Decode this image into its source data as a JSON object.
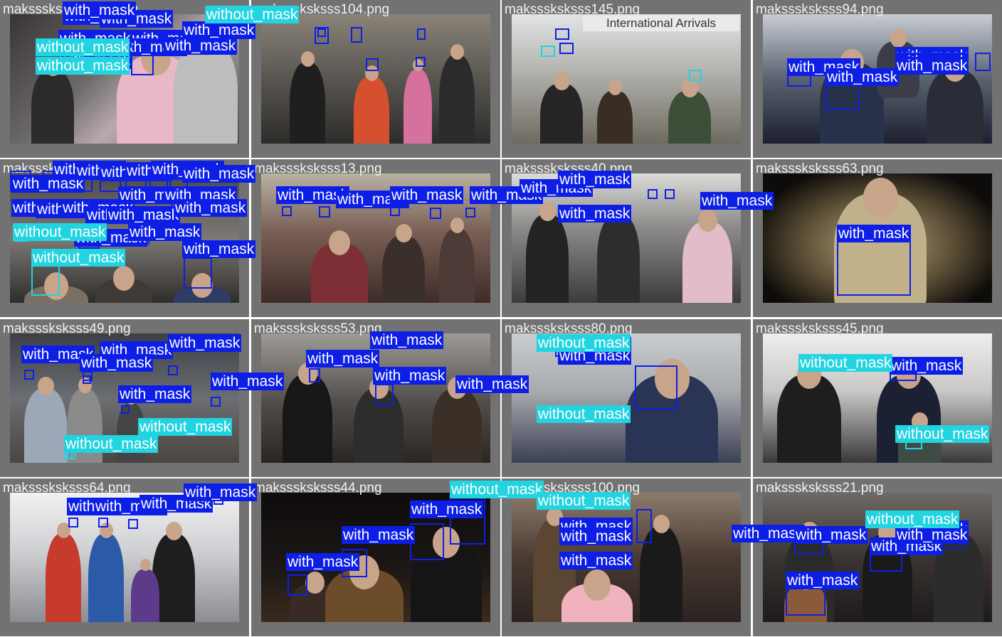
{
  "colors": {
    "with_mask": "#0d1fe6",
    "without_mask": "#22d3e0",
    "tile_bg": "#727272",
    "separator": "#ffffff",
    "filename_text": "#f2f2f2"
  },
  "class_labels": {
    "with_mask": "with_mask",
    "without_mask": "without_mask"
  },
  "tiles": [
    {
      "filename": "maksssksksss102.png",
      "scene": "child in pink jacket in stroller, crowd",
      "detections": [
        {
          "label": "with_mask"
        }
      ]
    },
    {
      "filename": "maksssksksss104.png",
      "scene": "crowded airport hall",
      "detections": [
        {
          "label": "with_mask"
        },
        {
          "label": "with_mask"
        },
        {
          "label": "with_mask"
        },
        {
          "label": "with_mask"
        },
        {
          "label": "with_mask"
        },
        {
          "label": "with_mask"
        },
        {
          "label": "without_mask"
        }
      ]
    },
    {
      "filename": "maksssksksss145.png",
      "scene": "travellers under International Arrivals sign",
      "sign_text": "International Arrivals",
      "detections": [
        {
          "label": "with_mask"
        },
        {
          "label": "with_mask"
        },
        {
          "label": "without_mask"
        },
        {
          "label": "without_mask"
        }
      ]
    },
    {
      "filename": "maksssksksss94.png",
      "scene": "group of people wearing masks",
      "detections": [
        {
          "label": "with_mask"
        },
        {
          "label": "with_mask"
        },
        {
          "label": "with_mask"
        },
        {
          "label": "with_mask"
        },
        {
          "label": "with_mask"
        }
      ]
    },
    {
      "filename": "maksssksksss10.png",
      "scene": "dense crowd of faces",
      "detections": [
        {
          "label": "with_mask"
        },
        {
          "label": "with_mask"
        },
        {
          "label": "with_mask"
        },
        {
          "label": "with_mask"
        },
        {
          "label": "with_mask"
        },
        {
          "label": "with_mask"
        },
        {
          "label": "with_mask"
        },
        {
          "label": "with_mask"
        },
        {
          "label": "with_mask"
        },
        {
          "label": "with_mask"
        },
        {
          "label": "with_mask"
        },
        {
          "label": "with_mask"
        },
        {
          "label": "with_mask"
        },
        {
          "label": "with_mask"
        },
        {
          "label": "with_mask"
        },
        {
          "label": "with_mask"
        },
        {
          "label": "with_mask"
        },
        {
          "label": "with_mask"
        },
        {
          "label": "without_mask"
        },
        {
          "label": "without_mask"
        }
      ]
    },
    {
      "filename": "maksssksksss13.png",
      "scene": "shoppers in a store aisle",
      "detections": [
        {
          "label": "with_mask"
        },
        {
          "label": "with_mask"
        },
        {
          "label": "with_mask"
        },
        {
          "label": "with_mask"
        },
        {
          "label": "with_mask"
        }
      ]
    },
    {
      "filename": "maksssksksss40.png",
      "scene": "airport walkway with luggage",
      "detections": [
        {
          "label": "with_mask"
        },
        {
          "label": "with_mask"
        },
        {
          "label": "with_mask"
        }
      ]
    },
    {
      "filename": "maksssksksss63.png",
      "scene": "person in hood wearing blue surgical mask",
      "detections": [
        {
          "label": "with_mask"
        }
      ]
    },
    {
      "filename": "maksssksksss49.png",
      "scene": "crowd with suitcases",
      "detections": [
        {
          "label": "with_mask"
        },
        {
          "label": "with_mask"
        },
        {
          "label": "with_mask"
        },
        {
          "label": "with_mask"
        },
        {
          "label": "with_mask"
        },
        {
          "label": "with_mask"
        },
        {
          "label": "without_mask"
        },
        {
          "label": "without_mask"
        }
      ]
    },
    {
      "filename": "maksssksksss53.png",
      "scene": "pedestrians on a street",
      "detections": [
        {
          "label": "with_mask"
        },
        {
          "label": "with_mask"
        },
        {
          "label": "with_mask"
        },
        {
          "label": "with_mask"
        }
      ]
    },
    {
      "filename": "maksssksksss80.png",
      "scene": "boy wearing blue mask outdoors",
      "detections": [
        {
          "label": "with_mask"
        },
        {
          "label": "with_mask"
        },
        {
          "label": "without_mask"
        },
        {
          "label": "without_mask"
        }
      ]
    },
    {
      "filename": "maksssksksss45.png",
      "scene": "people walking, blurred background",
      "detections": [
        {
          "label": "with_mask"
        },
        {
          "label": "without_mask"
        },
        {
          "label": "without_mask"
        }
      ]
    },
    {
      "filename": "maksssksksss64.png",
      "scene": "travellers with luggage in corridor",
      "detections": [
        {
          "label": "with_mask"
        },
        {
          "label": "with_mask"
        },
        {
          "label": "with_mask"
        },
        {
          "label": "with_mask"
        }
      ]
    },
    {
      "filename": "maksssksksss44.png",
      "scene": "people in dark setting with masks",
      "detections": [
        {
          "label": "with_mask"
        },
        {
          "label": "with_mask"
        },
        {
          "label": "with_mask"
        },
        {
          "label": "with_mask"
        },
        {
          "label": "without_mask"
        }
      ]
    },
    {
      "filename": "maksssksksss100.png",
      "scene": "woman holding child on street",
      "detections": [
        {
          "label": "with_mask"
        },
        {
          "label": "with_mask"
        },
        {
          "label": "with_mask"
        },
        {
          "label": "with_mask"
        },
        {
          "label": "without_mask"
        }
      ]
    },
    {
      "filename": "maksssksksss21.png",
      "scene": "crowd of people wearing masks",
      "detections": [
        {
          "label": "with_mask"
        },
        {
          "label": "with_mask"
        },
        {
          "label": "with_mask"
        },
        {
          "label": "with_mask"
        },
        {
          "label": "with_mask"
        },
        {
          "label": "without_mask"
        }
      ]
    }
  ]
}
